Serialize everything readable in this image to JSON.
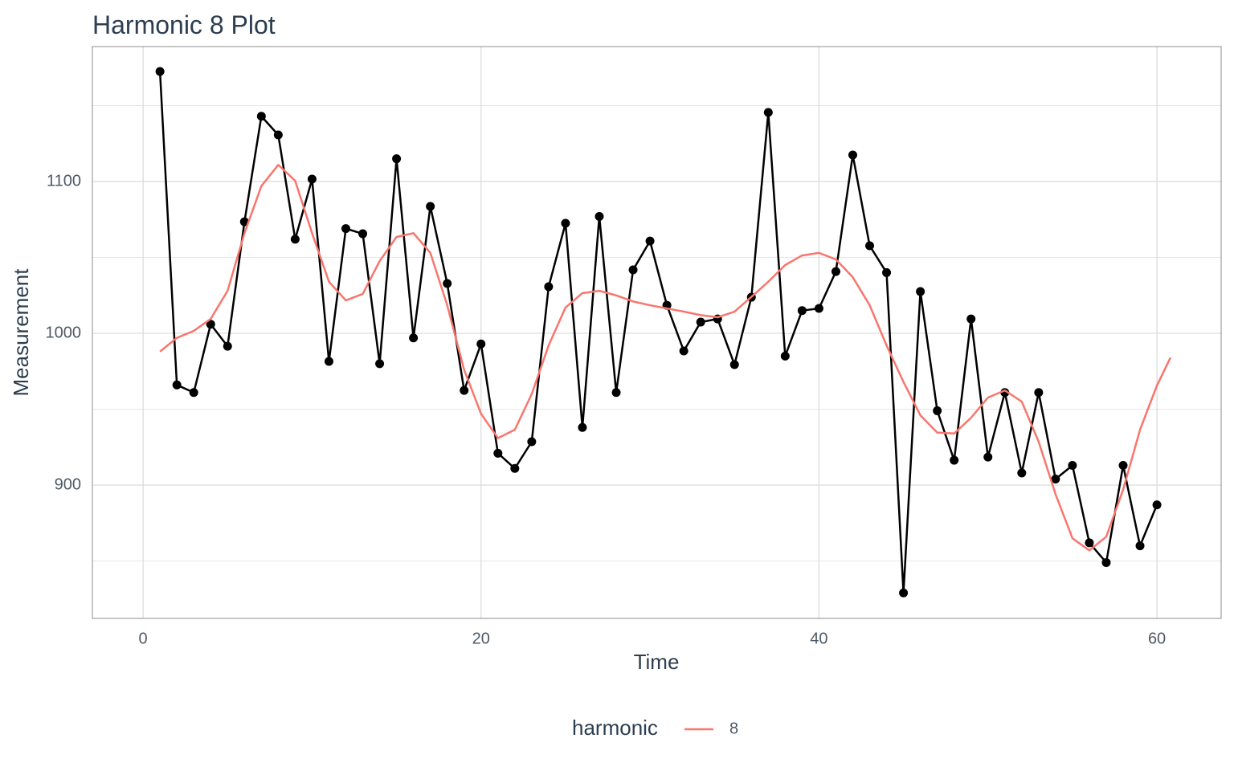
{
  "chart_data": {
    "type": "line",
    "title": "Harmonic 8 Plot",
    "x_label": "Time",
    "y_label": "Measurement",
    "x": [
      1,
      2,
      3,
      4,
      5,
      6,
      7,
      8,
      9,
      10,
      11,
      12,
      13,
      14,
      15,
      16,
      17,
      18,
      19,
      20,
      21,
      22,
      23,
      24,
      25,
      26,
      27,
      28,
      29,
      30,
      31,
      32,
      33,
      34,
      35,
      36,
      37,
      38,
      39,
      40,
      41,
      42,
      43,
      44,
      45,
      46,
      47,
      48,
      49,
      50,
      51,
      52,
      53,
      54,
      55,
      56,
      57,
      58,
      59,
      60
    ],
    "series": [
      {
        "color": "#000000",
        "markers": true,
        "values": [
          1172.5,
          966,
          961,
          1006,
          991.5,
          1073.5,
          1143,
          1130.7,
          1062,
          1101.6,
          981.5,
          1069,
          1065.6,
          980,
          1115,
          997,
          1083.6,
          1032.8,
          962.4,
          993,
          921,
          911,
          928.6,
          1030.7,
          1072.5,
          938,
          1077,
          961,
          1041.8,
          1060.8,
          1018.5,
          988.4,
          1007.4,
          1009.5,
          979.4,
          1023.8,
          1145.5,
          985,
          1015,
          1016.4,
          1040.7,
          1117.5,
          1057.7,
          1040,
          829,
          1027.5,
          949,
          916.4,
          1009.5,
          918.5,
          961,
          908,
          961,
          904,
          913,
          862,
          849,
          913,
          860,
          887
        ]
      },
      {
        "name": "8",
        "color": "#f8766d",
        "markers": false,
        "x": [
          1,
          2,
          3,
          4,
          5,
          6,
          7,
          8,
          9,
          10,
          11,
          12,
          13,
          14,
          15,
          16,
          17,
          18,
          19,
          20,
          21,
          22,
          23,
          24,
          25,
          26,
          27,
          28,
          29,
          30,
          31,
          32,
          33,
          34,
          35,
          36,
          37,
          38,
          39,
          40,
          41,
          42,
          43,
          44,
          45,
          46,
          47,
          48,
          49,
          50,
          51,
          52,
          53,
          54,
          55,
          56,
          57,
          58,
          59,
          60,
          60.8
        ],
        "values": [
          988,
          997,
          1001.6,
          1009.5,
          1028,
          1066,
          1097,
          1111,
          1100.5,
          1066,
          1034,
          1021.7,
          1026,
          1047.6,
          1063.5,
          1066,
          1053,
          1018.5,
          976,
          947,
          931,
          936.5,
          960,
          992,
          1017,
          1026.5,
          1028,
          1025,
          1021,
          1018.5,
          1016.4,
          1014.3,
          1012,
          1010.6,
          1014.3,
          1024,
          1034,
          1045,
          1051.3,
          1053,
          1048.7,
          1037,
          1018.5,
          992,
          968,
          946,
          934.6,
          934,
          944.4,
          957.7,
          962.4,
          955,
          928.6,
          894,
          865,
          857,
          866,
          897,
          936.5,
          965.6,
          984
        ]
      }
    ],
    "legend_title": "harmonic",
    "legend": "bottom",
    "xlim": [
      -3,
      63.8
    ],
    "xticks": [
      0,
      20,
      40,
      60
    ],
    "ylim": [
      812.2,
      1188.9
    ],
    "yticks": [
      900,
      1000,
      1100
    ],
    "yminor": [
      850,
      950,
      1050,
      1150
    ],
    "grid": true
  }
}
